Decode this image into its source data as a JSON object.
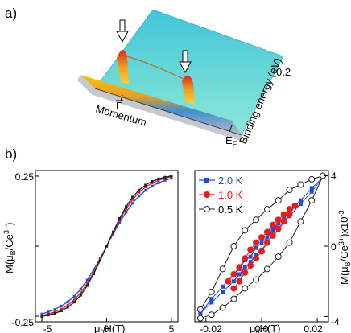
{
  "panel_a": {
    "label": "a)",
    "axis_momentum": "Momentum",
    "tick_gamma": "Γ",
    "axis_energy": "Binding energy (eV)",
    "tick_energy_top": "0.2",
    "tick_fermi": "E",
    "tick_fermi_sub": "F",
    "colors": {
      "surface_top": "#5fd8d6",
      "peak": "#e0471b",
      "band": "#f2c418",
      "base": "#3a78b8"
    }
  },
  "panel_b": {
    "label": "b)",
    "left": {
      "ylabel_prefix": "M(μ",
      "ylabel_sub": "B",
      "ylabel_mid": "/Ce",
      "ylabel_sup": "3+",
      "ylabel_suffix": ")",
      "xlabel_prefix": "μ",
      "xlabel_sub": "0",
      "xlabel_suffix": "H(T)",
      "xticks": [
        "-5",
        "0",
        "5"
      ],
      "yticks": [
        "-0.25",
        "0.25"
      ]
    },
    "right": {
      "ylabel_prefix": "M(μ",
      "ylabel_sub": "B",
      "ylabel_mid": "/Ce",
      "ylabel_sup": "3+",
      "ylabel_suffix": ")x10",
      "ylabel_exp": "-3",
      "xlabel_prefix": "μ",
      "xlabel_sub": "0",
      "xlabel_suffix": "H(T)",
      "xticks": [
        "-0.02",
        "0.0",
        "0.02"
      ],
      "yticks": [
        "4",
        "0",
        "-4"
      ],
      "legend": [
        "2.0 K",
        "1.0 K",
        "0.5 K"
      ]
    }
  },
  "chart_data": [
    {
      "type": "line",
      "xlim": [
        -5.5,
        5.5
      ],
      "ylim": [
        -0.27,
        0.27
      ],
      "grid": false,
      "series": [
        {
          "color": "#1f4fd8",
          "x": [
            -5,
            -4.5,
            -4,
            -3.5,
            -3,
            -2.5,
            -2,
            -1.5,
            -1,
            -0.5,
            0,
            0.5,
            1,
            1.5,
            2,
            2.5,
            3,
            3.5,
            4,
            4.5,
            5
          ],
          "y": [
            -0.242,
            -0.235,
            -0.226,
            -0.214,
            -0.199,
            -0.179,
            -0.153,
            -0.121,
            -0.084,
            -0.043,
            0.0,
            0.043,
            0.084,
            0.121,
            0.153,
            0.179,
            0.199,
            0.214,
            0.226,
            0.235,
            0.242
          ]
        },
        {
          "color": "#e02020",
          "x": [
            -5,
            -4.5,
            -4,
            -3.5,
            -3,
            -2.5,
            -2,
            -1.5,
            -1,
            -0.5,
            0,
            0.5,
            1,
            1.5,
            2,
            2.5,
            3,
            3.5,
            4,
            4.5,
            5
          ],
          "y": [
            -0.248,
            -0.242,
            -0.235,
            -0.225,
            -0.211,
            -0.192,
            -0.166,
            -0.133,
            -0.093,
            -0.048,
            0.0,
            0.048,
            0.093,
            0.133,
            0.166,
            0.192,
            0.211,
            0.225,
            0.235,
            0.242,
            0.248
          ]
        },
        {
          "color": "#222222",
          "x": [
            -5,
            -4.5,
            -4,
            -3.5,
            -3,
            -2.5,
            -2,
            -1.5,
            -1,
            -0.5,
            0,
            0.5,
            1,
            1.5,
            2,
            2.5,
            3,
            3.5,
            4,
            4.5,
            5
          ],
          "y": [
            -0.251,
            -0.246,
            -0.24,
            -0.231,
            -0.218,
            -0.2,
            -0.175,
            -0.141,
            -0.099,
            -0.051,
            0.0,
            0.051,
            0.099,
            0.141,
            0.175,
            0.2,
            0.218,
            0.231,
            0.24,
            0.246,
            0.251
          ]
        }
      ]
    },
    {
      "type": "scatter",
      "xlim": [
        -0.024,
        0.024
      ],
      "ylim": [
        -4.3,
        4.3
      ],
      "grid": false,
      "series": [
        {
          "name": "2.0 K",
          "color": "#1f4fd8",
          "marker": "square",
          "x": [
            -0.022,
            -0.018,
            -0.014,
            -0.01,
            -0.008,
            -0.006,
            -0.004,
            -0.002,
            0.0,
            0.002,
            0.004,
            0.006,
            0.008,
            0.01,
            0.014,
            0.018,
            0.022,
            0.018,
            0.014,
            0.01,
            0.008,
            0.006,
            0.004,
            0.002,
            0.0,
            -0.002,
            -0.004,
            -0.006,
            -0.008,
            -0.01,
            -0.014,
            -0.018,
            -0.022
          ],
          "y": [
            -3.8,
            -3.0,
            -2.3,
            -1.6,
            -1.3,
            -0.8,
            -0.6,
            -0.1,
            0.2,
            0.5,
            0.9,
            1.3,
            1.6,
            2.0,
            2.6,
            3.3,
            3.9,
            3.1,
            2.4,
            1.7,
            1.4,
            0.9,
            0.6,
            0.2,
            -0.2,
            -0.5,
            -0.9,
            -1.2,
            -1.6,
            -2.0,
            -2.6,
            -3.2,
            -3.8
          ]
        },
        {
          "name": "1.0 K",
          "color": "#e02020",
          "marker": "circle",
          "x": [
            -0.012,
            -0.01,
            -0.008,
            -0.006,
            -0.004,
            -0.002,
            0.0,
            0.002,
            0.004,
            0.006,
            0.008,
            0.01,
            0.012,
            0.01,
            0.008,
            0.006,
            0.004,
            0.002,
            0.0,
            -0.002,
            -0.004,
            -0.006,
            -0.008,
            -0.01
          ],
          "y": [
            -2.0,
            -1.6,
            -1.2,
            -0.7,
            -0.2,
            0.2,
            0.5,
            0.8,
            1.2,
            1.5,
            1.8,
            2.1,
            2.3,
            1.8,
            1.4,
            1.0,
            0.6,
            0.2,
            -0.3,
            -0.7,
            -1.1,
            -1.5,
            -2.0,
            -2.4
          ]
        },
        {
          "name": "0.5 K",
          "color": "#222222",
          "marker": "open-circle",
          "x": [
            -0.022,
            -0.018,
            -0.014,
            -0.01,
            -0.006,
            -0.002,
            0.002,
            0.006,
            0.01,
            0.014,
            0.018,
            0.022,
            0.018,
            0.014,
            0.01,
            0.006,
            0.002,
            -0.002,
            -0.006,
            -0.01,
            -0.014,
            -0.018,
            -0.022
          ],
          "y": [
            -3.6,
            -2.6,
            -1.3,
            0.0,
            0.9,
            1.5,
            2.1,
            2.6,
            3.2,
            3.5,
            3.8,
            4.0,
            2.6,
            1.4,
            0.2,
            -0.6,
            -1.3,
            -1.9,
            -2.4,
            -3.0,
            -3.5,
            -3.9,
            -4.1
          ]
        }
      ]
    }
  ]
}
